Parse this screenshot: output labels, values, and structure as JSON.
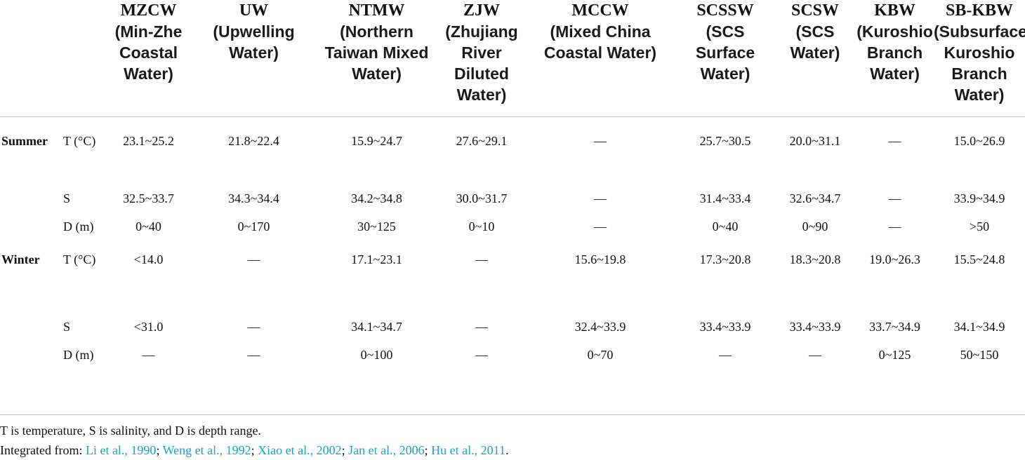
{
  "columns": [
    {
      "abbr": "MZCW",
      "full": "(Min-Zhe Coastal Water)"
    },
    {
      "abbr": "UW",
      "full": "(Upwelling Water)"
    },
    {
      "abbr": "NTMW",
      "full": "(Northern Taiwan Mixed Water)"
    },
    {
      "abbr": "ZJW",
      "full": "(Zhujiang River Diluted Water)"
    },
    {
      "abbr": "MCCW",
      "full": "(Mixed China Coastal Water)"
    },
    {
      "abbr": "SCSSW",
      "full": "(SCS Surface Water)"
    },
    {
      "abbr": "SCSW",
      "full": "(SCS Water)"
    },
    {
      "abbr": "KBW",
      "full": "(Kuroshio Branch Water)"
    },
    {
      "abbr": "SB-KBW",
      "full": "(Subsurface Kuroshio Branch Water)"
    }
  ],
  "rows": [
    {
      "season": "Summer",
      "param": "T (°C)",
      "values": [
        "23.1~25.2",
        "21.8~22.4",
        "15.9~24.7",
        "27.6~29.1",
        "—",
        "25.7~30.5",
        "20.0~31.1",
        "—",
        "15.0~26.9"
      ]
    },
    {
      "season": "",
      "param": "S",
      "values": [
        "32.5~33.7",
        "34.3~34.4",
        "34.2~34.8",
        "30.0~31.7",
        "—",
        "31.4~33.4",
        "32.6~34.7",
        "—",
        "33.9~34.9"
      ]
    },
    {
      "season": "",
      "param": "D (m)",
      "values": [
        "0~40",
        "0~170",
        "30~125",
        "0~10",
        "—",
        "0~40",
        "0~90",
        "—",
        ">50"
      ]
    },
    {
      "season": "Winter",
      "param": "T (°C)",
      "values": [
        "<14.0",
        "—",
        "17.1~23.1",
        "—",
        "15.6~19.8",
        "17.3~20.8",
        "18.3~20.8",
        "19.0~26.3",
        "15.5~24.8"
      ]
    },
    {
      "season": "",
      "param": "S",
      "values": [
        "<31.0",
        "—",
        "34.1~34.7",
        "—",
        "32.4~33.9",
        "33.4~33.9",
        "33.4~33.9",
        "33.7~34.9",
        "34.1~34.9"
      ]
    },
    {
      "season": "",
      "param": "D (m)",
      "values": [
        "—",
        "—",
        "0~100",
        "—",
        "0~70",
        "—",
        "—",
        "0~125",
        "50~150"
      ]
    }
  ],
  "notes": {
    "definition": "T is temperature, S is salinity, and D is depth range.",
    "source_prefix": "Integrated from: ",
    "refs": [
      "Li et al., 1990",
      "Weng et al., 1992",
      "Xiao et al., 2002",
      "Jan et al., 2006",
      "Hu et al., 2011"
    ],
    "sep": "; ",
    "end": "."
  }
}
